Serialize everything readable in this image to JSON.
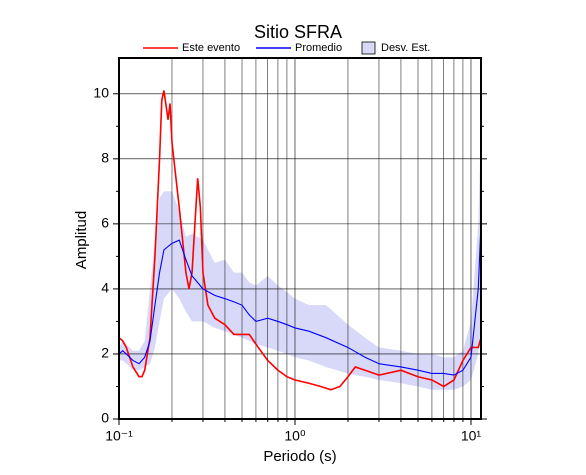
{
  "chart_data": {
    "type": "line",
    "title": "Sitio SFRA",
    "xlabel": "Periodo (s)",
    "ylabel": "Amplitud",
    "xscale": "log",
    "grid": true,
    "xlim": [
      0.1,
      11.4
    ],
    "ylim": [
      0,
      11.1
    ],
    "xticks": [
      {
        "value": 0.1,
        "label": "10⁻¹"
      },
      {
        "value": 1,
        "label": "10⁰"
      },
      {
        "value": 10,
        "label": "10¹"
      }
    ],
    "xminorticks": [
      0.2,
      0.3,
      0.4,
      0.5,
      0.6,
      0.7,
      0.8,
      0.9,
      2,
      3,
      4,
      5,
      6,
      7,
      8,
      9
    ],
    "yticks": [
      0,
      2,
      4,
      6,
      8,
      10
    ],
    "yminorticks": [
      1,
      3,
      5,
      7,
      9
    ],
    "series": [
      {
        "name": "Este evento",
        "color": "#ff0000",
        "x": [
          0.1,
          0.105,
          0.11,
          0.12,
          0.13,
          0.135,
          0.14,
          0.15,
          0.16,
          0.17,
          0.175,
          0.18,
          0.19,
          0.195,
          0.2,
          0.22,
          0.24,
          0.25,
          0.26,
          0.27,
          0.28,
          0.29,
          0.3,
          0.32,
          0.35,
          0.4,
          0.45,
          0.5,
          0.55,
          0.6,
          0.7,
          0.8,
          0.9,
          1.0,
          1.2,
          1.4,
          1.6,
          1.8,
          2.0,
          2.2,
          2.5,
          3,
          4,
          5,
          6,
          7,
          8,
          9,
          10,
          11,
          11.4
        ],
        "values": [
          2.5,
          2.4,
          2.2,
          1.6,
          1.3,
          1.3,
          1.5,
          2.5,
          5.0,
          8.0,
          9.8,
          10.1,
          9.2,
          9.7,
          8.5,
          6.5,
          4.5,
          4.0,
          4.5,
          6.0,
          7.4,
          6.5,
          4.5,
          3.5,
          3.1,
          2.9,
          2.6,
          2.6,
          2.6,
          2.3,
          1.8,
          1.5,
          1.3,
          1.2,
          1.1,
          1.0,
          0.9,
          1.0,
          1.3,
          1.6,
          1.5,
          1.35,
          1.5,
          1.3,
          1.2,
          1.0,
          1.2,
          1.8,
          2.2,
          2.2,
          2.5
        ]
      },
      {
        "name": "Promedio",
        "color": "#0000ff",
        "x": [
          0.1,
          0.105,
          0.11,
          0.12,
          0.13,
          0.14,
          0.15,
          0.16,
          0.17,
          0.18,
          0.2,
          0.22,
          0.24,
          0.26,
          0.3,
          0.35,
          0.4,
          0.45,
          0.5,
          0.55,
          0.6,
          0.7,
          0.8,
          0.9,
          1.0,
          1.2,
          1.5,
          2.0,
          2.5,
          3,
          4,
          5,
          6,
          7,
          8,
          9,
          10,
          11,
          11.4
        ],
        "values": [
          2.0,
          2.1,
          2.0,
          1.8,
          1.7,
          1.9,
          2.4,
          3.5,
          4.5,
          5.2,
          5.4,
          5.5,
          4.9,
          4.4,
          4.0,
          3.8,
          3.7,
          3.6,
          3.5,
          3.2,
          3.0,
          3.1,
          3.0,
          2.9,
          2.8,
          2.7,
          2.5,
          2.2,
          1.9,
          1.7,
          1.6,
          1.5,
          1.4,
          1.4,
          1.35,
          1.5,
          1.9,
          4.0,
          6.0
        ]
      },
      {
        "name": "Desv. Est.",
        "color": "#d8d8f8",
        "band": true,
        "x": [
          0.1,
          0.105,
          0.11,
          0.12,
          0.13,
          0.14,
          0.15,
          0.16,
          0.17,
          0.18,
          0.2,
          0.22,
          0.24,
          0.26,
          0.3,
          0.35,
          0.4,
          0.45,
          0.5,
          0.55,
          0.6,
          0.7,
          0.8,
          0.9,
          1.0,
          1.2,
          1.5,
          2.0,
          2.5,
          3,
          4,
          5,
          6,
          7,
          8,
          9,
          10,
          11,
          11.4
        ],
        "lower": [
          1.8,
          1.8,
          1.7,
          1.5,
          1.5,
          1.6,
          1.7,
          2.2,
          3.0,
          3.7,
          4.0,
          3.7,
          3.3,
          3.0,
          3.0,
          2.8,
          2.7,
          2.6,
          2.5,
          2.4,
          2.3,
          2.2,
          2.1,
          2.0,
          1.9,
          1.8,
          1.6,
          1.4,
          1.3,
          1.2,
          1.1,
          1.0,
          0.9,
          0.9,
          0.9,
          1.0,
          1.2,
          2.0,
          3.0
        ],
        "upper": [
          2.2,
          2.4,
          2.3,
          2.1,
          2.1,
          2.4,
          4.0,
          5.5,
          6.8,
          7.0,
          7.0,
          6.4,
          5.6,
          5.7,
          5.5,
          4.8,
          4.9,
          4.5,
          4.5,
          4.2,
          4.1,
          4.4,
          4.1,
          3.9,
          3.7,
          3.5,
          3.5,
          2.9,
          2.5,
          2.2,
          2.1,
          2.0,
          2.0,
          1.9,
          1.9,
          2.1,
          3.0,
          6.0,
          9.0
        ]
      }
    ]
  }
}
